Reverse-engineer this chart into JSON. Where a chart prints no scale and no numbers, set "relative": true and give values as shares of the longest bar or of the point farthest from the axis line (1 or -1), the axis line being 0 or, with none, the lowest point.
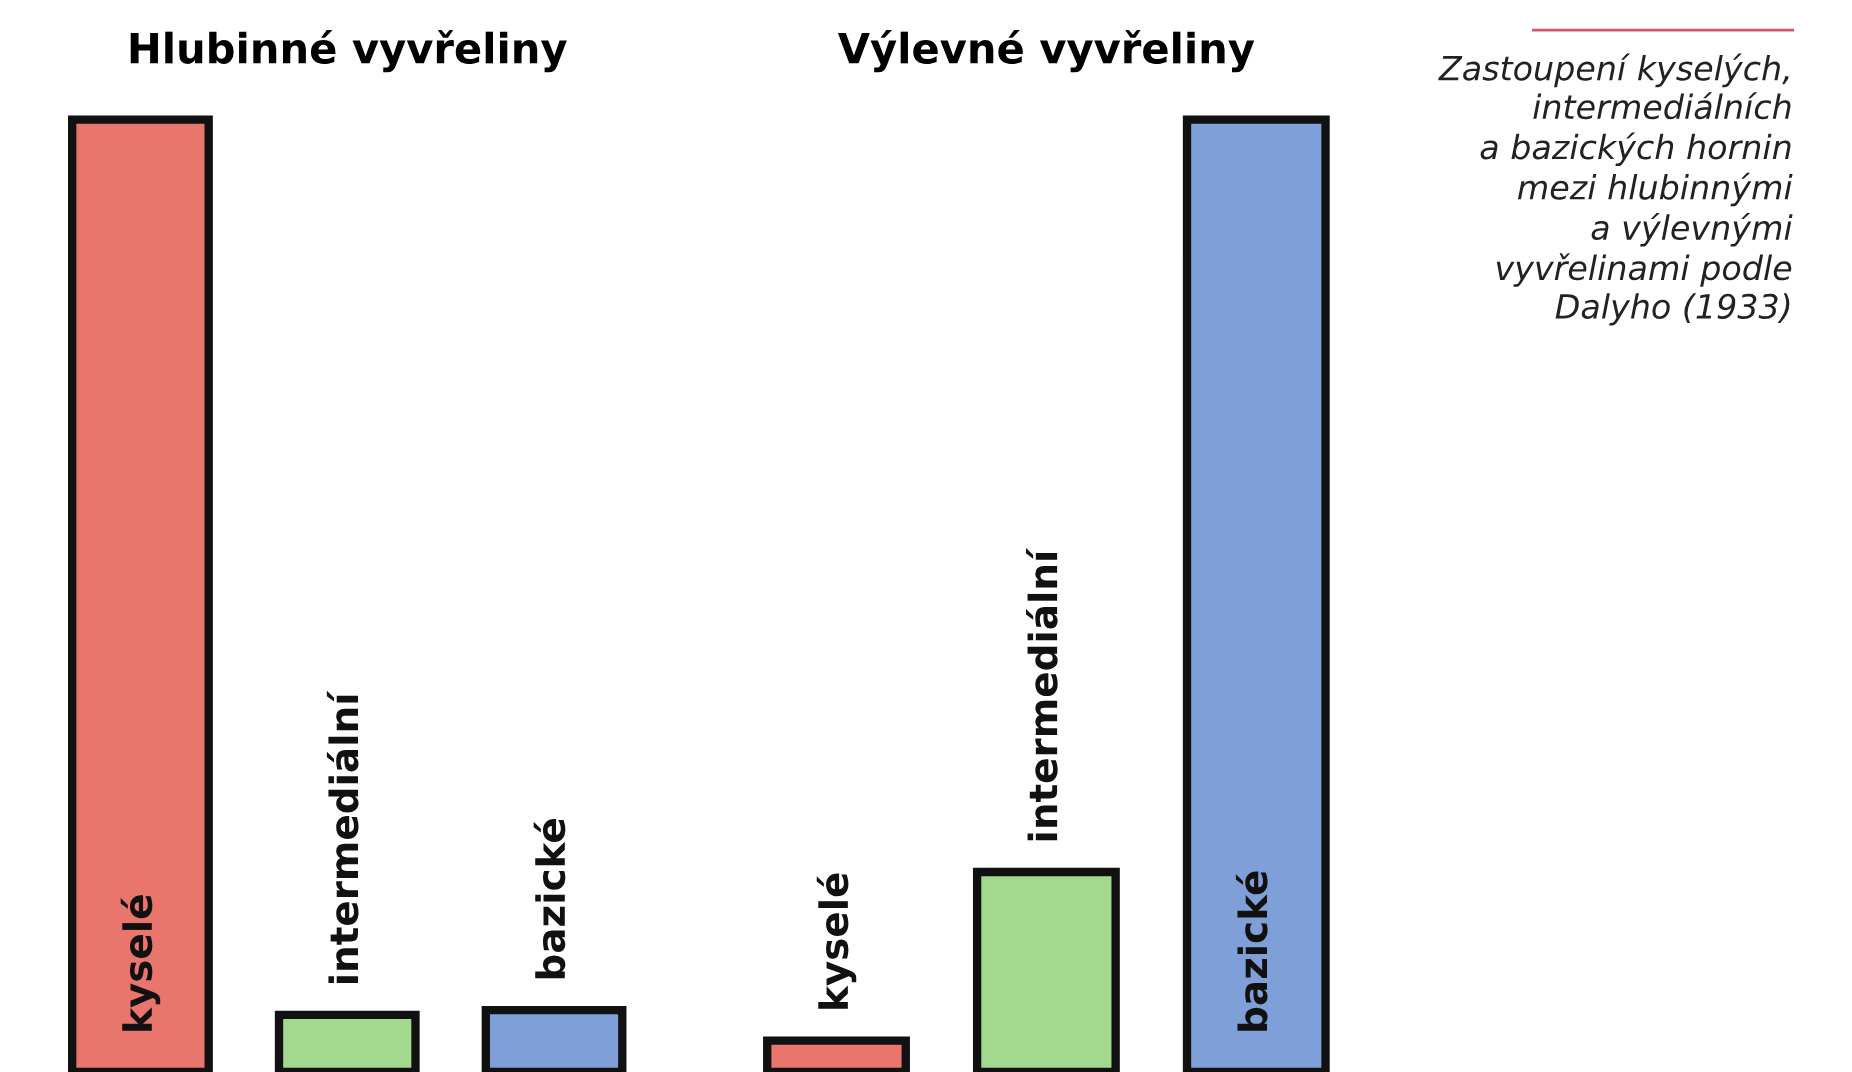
{
  "chart_data": [
    {
      "type": "bar",
      "title": "Hlubinné vyvřeliny",
      "relative": true,
      "categories": [
        "kyselé",
        "intermediální",
        "bazické"
      ],
      "values": [
        1,
        0.06,
        0.065
      ],
      "colors": [
        "#e8766c",
        "#a3d88f",
        "#7f9fd9"
      ],
      "annotations": [
        "Zastoupení kyselých,\nintermediálních\na bazických hornin\nmezi hlubinnými\na výlevnými\nvyvřelinami podle\nDalyho (1933)"
      ]
    },
    {
      "type": "bar",
      "title": "Výlevné vyvřeliny",
      "relative": true,
      "categories": [
        "kyselé",
        "intermediální",
        "bazické"
      ],
      "values": [
        0.033,
        0.21,
        1
      ],
      "colors": [
        "#e8766c",
        "#a3d88f",
        "#7f9fd9"
      ]
    }
  ]
}
